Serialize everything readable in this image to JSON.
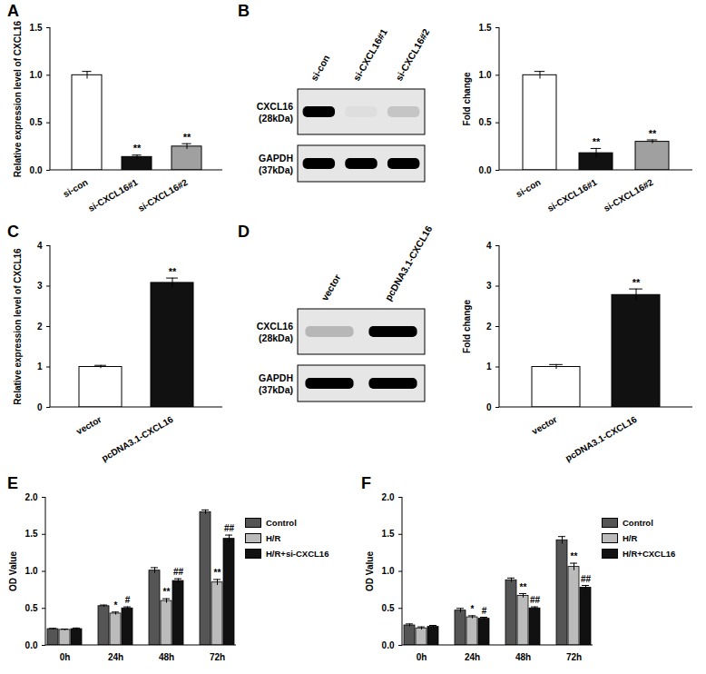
{
  "chart_data": [
    {
      "title": "A",
      "type": "bar",
      "categories": [
        "si-con",
        "si-CXCL16#1",
        "si-CXCL16#2"
      ],
      "values": [
        1.0,
        0.14,
        0.25
      ],
      "errors": [
        0.04,
        0.02,
        0.03
      ],
      "significance": [
        null,
        "**",
        "**"
      ],
      "colors": [
        "#ffffff",
        "#111111",
        "#a0a0a0"
      ],
      "ylabel": "Relative expression level of CXCL16",
      "ylim": [
        0,
        1.5
      ],
      "yticks": [
        {
          "value": 0,
          "label": "0.0"
        },
        {
          "value": 0.5,
          "label": "0.5"
        },
        {
          "value": 1,
          "label": "1.0"
        },
        {
          "value": 1.5,
          "label": "1.5"
        }
      ]
    },
    {
      "title": "B",
      "type": "bar",
      "categories": [
        "si-con",
        "si-CXCL16#1",
        "si-CXCL16#2"
      ],
      "values": [
        1.0,
        0.18,
        0.3
      ],
      "errors": [
        0.04,
        0.05,
        0.02
      ],
      "significance": [
        null,
        "**",
        "**"
      ],
      "colors": [
        "#ffffff",
        "#111111",
        "#a0a0a0"
      ],
      "ylabel": "Fold change",
      "ylim": [
        0,
        1.5
      ],
      "yticks": [
        {
          "value": 0,
          "label": "0.0"
        },
        {
          "value": 0.5,
          "label": "0.5"
        },
        {
          "value": 1,
          "label": "1.0"
        },
        {
          "value": 1.5,
          "label": "1.5"
        }
      ],
      "blot": {
        "bands": [
          {
            "name": "CXCL16",
            "size": "(28kDa)"
          },
          {
            "name": "GAPDH",
            "size": "(37kDa)"
          }
        ]
      }
    },
    {
      "title": "C",
      "type": "bar",
      "categories": [
        "vector",
        "pcDNA3.1-CXCL16"
      ],
      "values": [
        1.0,
        3.08
      ],
      "errors": [
        0.04,
        0.12
      ],
      "significance": [
        null,
        "**"
      ],
      "colors": [
        "#ffffff",
        "#111111"
      ],
      "ylabel": "Relative expression level of CXCL16",
      "ylim": [
        0,
        4
      ],
      "yticks": [
        0,
        1,
        2,
        3,
        4
      ]
    },
    {
      "title": "D",
      "type": "bar",
      "categories": [
        "vector",
        "pcDNA3.1-CXCL16"
      ],
      "values": [
        1.0,
        2.78
      ],
      "errors": [
        0.06,
        0.15
      ],
      "significance": [
        null,
        "**"
      ],
      "colors": [
        "#ffffff",
        "#111111"
      ],
      "ylabel": "Fold change",
      "ylim": [
        0,
        4
      ],
      "yticks": [
        0,
        1,
        2,
        3,
        4
      ],
      "blot": {
        "bands": [
          {
            "name": "CXCL16",
            "size": "(28kDa)"
          },
          {
            "name": "GAPDH",
            "size": "(37kDa)"
          }
        ]
      }
    },
    {
      "title": "E",
      "type": "bar",
      "categories": [
        "0h",
        "24h",
        "48h",
        "72h"
      ],
      "series": [
        {
          "name": "Control",
          "color": "#555555",
          "values": [
            0.22,
            0.53,
            1.01,
            1.8
          ],
          "errors": [
            0.01,
            0.015,
            0.04,
            0.03
          ],
          "significance": [
            null,
            null,
            null,
            null
          ]
        },
        {
          "name": "H/R",
          "color": "#bbbbbb",
          "values": [
            0.21,
            0.43,
            0.6,
            0.85
          ],
          "errors": [
            0.01,
            0.02,
            0.03,
            0.04
          ],
          "significance": [
            null,
            "*",
            "**",
            "**"
          ]
        },
        {
          "name": "H/R+si-CXCL16",
          "color": "#111111",
          "values": [
            0.22,
            0.5,
            0.87,
            1.44
          ],
          "errors": [
            0.015,
            0.02,
            0.03,
            0.05
          ],
          "significance": [
            null,
            "#",
            "##",
            "##"
          ]
        }
      ],
      "ylabel": "OD Value",
      "ylim": [
        0,
        2
      ],
      "yticks": [
        {
          "value": 0,
          "label": "0.0"
        },
        {
          "value": 0.5,
          "label": "0.5"
        },
        {
          "value": 1,
          "label": "1.0"
        },
        {
          "value": 1.5,
          "label": "1.5"
        },
        {
          "value": 2,
          "label": "2.0"
        }
      ],
      "legend": "right"
    },
    {
      "title": "F",
      "type": "bar",
      "categories": [
        "0h",
        "24h",
        "48h",
        "72h"
      ],
      "series": [
        {
          "name": "Control",
          "color": "#555555",
          "values": [
            0.27,
            0.47,
            0.88,
            1.42
          ],
          "errors": [
            0.02,
            0.03,
            0.03,
            0.05
          ],
          "significance": [
            null,
            null,
            null,
            null
          ]
        },
        {
          "name": "H/R",
          "color": "#bbbbbb",
          "values": [
            0.23,
            0.38,
            0.67,
            1.06
          ],
          "errors": [
            0.02,
            0.02,
            0.03,
            0.05
          ],
          "significance": [
            null,
            "*",
            "**",
            "**"
          ]
        },
        {
          "name": "H/R+CXCL16",
          "color": "#111111",
          "values": [
            0.25,
            0.36,
            0.5,
            0.78
          ],
          "errors": [
            0.02,
            0.02,
            0.02,
            0.03
          ],
          "significance": [
            null,
            "#",
            "##",
            "##"
          ]
        }
      ],
      "ylabel": "OD Value",
      "ylim": [
        0,
        2
      ],
      "yticks": [
        {
          "value": 0,
          "label": "0.0"
        },
        {
          "value": 0.5,
          "label": "0.5"
        },
        {
          "value": 1,
          "label": "1.0"
        },
        {
          "value": 1.5,
          "label": "1.5"
        },
        {
          "value": 2,
          "label": "2.0"
        }
      ],
      "legend": "right"
    }
  ]
}
